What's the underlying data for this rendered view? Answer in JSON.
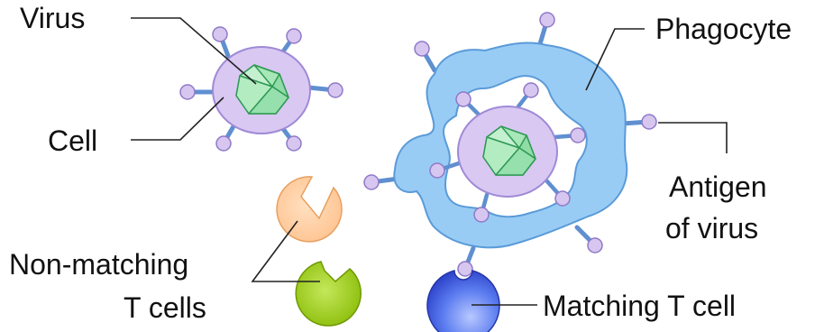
{
  "labels": {
    "virus": "Virus",
    "cell": "Cell",
    "phagocyte": "Phagocyte",
    "antigen_line1": "Antigen",
    "antigen_line2": "of virus",
    "nonmatching_line1": "Non-matching",
    "nonmatching_line2": "T cells",
    "matching": "Matching T cell"
  },
  "colors": {
    "cell_fill": "#d9c8f2",
    "cell_stroke": "#9f8ad6",
    "virus_fill": "#a8e8b8",
    "virus_stroke": "#2f9a55",
    "phagocyte_fill": "#99ccf5",
    "phagocyte_stroke": "#5a9bd8",
    "antigen_stalk": "#5f8fd0",
    "antigen_knob_fill": "#d7c6ef",
    "antigen_knob_stroke": "#8f79c8",
    "tcell_orange": "#ffc898",
    "tcell_green": "#9bc91a",
    "tcell_blue": "#3c5ee8"
  }
}
